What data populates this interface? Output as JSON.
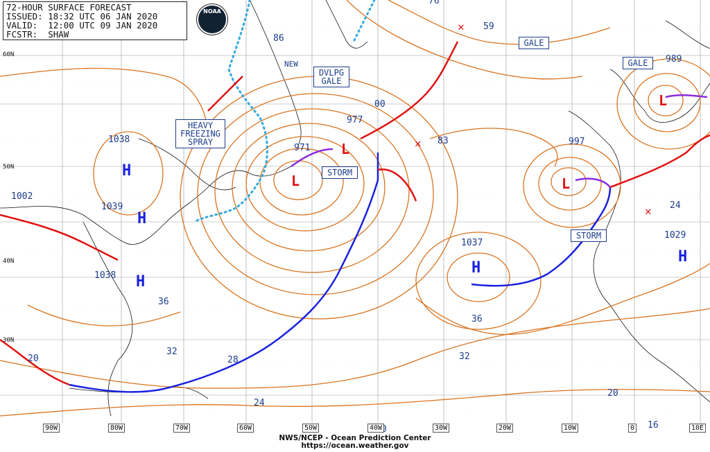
{
  "header": {
    "line1": "72-HOUR SURFACE FORECAST",
    "line2": "ISSUED: 18:32 UTC 06 JAN 2020",
    "line3": "VALID:  12:00 UTC 09 JAN 2020",
    "line4": "FCSTR:  SHAW"
  },
  "logo_text": "NOAA",
  "credit": {
    "line1": "NWS/NCEP - Ocean Prediction Center",
    "line2": "https://ocean.weather.gov"
  },
  "longitude_labels": [
    "90W",
    "80W",
    "70W",
    "60W",
    "50W",
    "40W",
    "30W",
    "20W",
    "10W",
    "0",
    "10E"
  ],
  "latitude_labels": [
    "60N",
    "50N",
    "40N",
    "30N"
  ],
  "highs": [
    {
      "label": "H",
      "pressure": "1038"
    },
    {
      "label": "H",
      "pressure": "1039"
    },
    {
      "label": "H",
      "pressure": "1038"
    },
    {
      "label": "H",
      "pressure": "1037"
    },
    {
      "label": "H",
      "pressure": "1029"
    }
  ],
  "lows": [
    {
      "label": "L",
      "pressure": "971"
    },
    {
      "label": "L",
      "pressure": "977"
    },
    {
      "label": "L",
      "pressure": "997"
    },
    {
      "label": "L",
      "pressure": "989"
    }
  ],
  "isobar_labels": [
    "1002",
    "86",
    "76",
    "59",
    "00",
    "83",
    "24",
    "36",
    "32",
    "28",
    "24",
    "20",
    "36",
    "32",
    "20",
    "16",
    "20"
  ],
  "warnings": {
    "heavy_freezing_spray": "HEAVY\nFREEZING\nSPRAY",
    "dvlpg_gale": "DVLPG\nGALE",
    "storm1": "STORM",
    "storm2": "STORM",
    "gale1": "GALE",
    "gale2": "GALE",
    "new": "NEW"
  },
  "colors": {
    "isobar": "#d9731f",
    "front_warm": "#e01010",
    "front_cold": "#1a22e0",
    "occluded": "#8a2be2",
    "ice_edge": "#33aadd",
    "text_blue": "#1a3c8c",
    "pressure_center": "#1a22e0"
  }
}
